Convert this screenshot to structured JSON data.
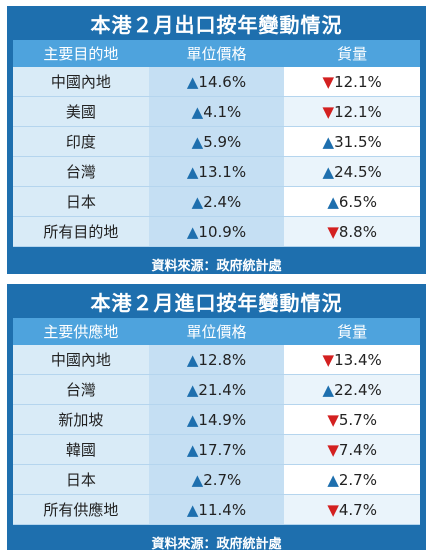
{
  "colors": {
    "panel": "#1e6fae",
    "header": "#4ea3dd",
    "up": "#1e6fae",
    "down": "#d32020"
  },
  "symbols": {
    "up": "▲",
    "down": "▼"
  },
  "export": {
    "title": "本港２月出口按年變動情況",
    "headers": [
      "主要目的地",
      "單位價格",
      "貨量"
    ],
    "rows": [
      {
        "name": "中國內地",
        "price": "14.6%",
        "price_dir": "up",
        "vol": "12.1%",
        "vol_dir": "down"
      },
      {
        "name": "美國",
        "price": "4.1%",
        "price_dir": "up",
        "vol": "12.1%",
        "vol_dir": "down"
      },
      {
        "name": "印度",
        "price": "5.9%",
        "price_dir": "up",
        "vol": "31.5%",
        "vol_dir": "up"
      },
      {
        "name": "台灣",
        "price": "13.1%",
        "price_dir": "up",
        "vol": "24.5%",
        "vol_dir": "up"
      },
      {
        "name": "日本",
        "price": "2.4%",
        "price_dir": "up",
        "vol": "6.5%",
        "vol_dir": "up"
      },
      {
        "name": "所有目的地",
        "price": "10.9%",
        "price_dir": "up",
        "vol": "8.8%",
        "vol_dir": "down"
      }
    ],
    "source": "資料來源：政府統計處"
  },
  "import": {
    "title": "本港２月進口按年變動情況",
    "headers": [
      "主要供應地",
      "單位價格",
      "貨量"
    ],
    "rows": [
      {
        "name": "中國內地",
        "price": "12.8%",
        "price_dir": "up",
        "vol": "13.4%",
        "vol_dir": "down"
      },
      {
        "name": "台灣",
        "price": "21.4%",
        "price_dir": "up",
        "vol": "22.4%",
        "vol_dir": "up"
      },
      {
        "name": "新加坡",
        "price": "14.9%",
        "price_dir": "up",
        "vol": "5.7%",
        "vol_dir": "down"
      },
      {
        "name": "韓國",
        "price": "17.7%",
        "price_dir": "up",
        "vol": "7.4%",
        "vol_dir": "down"
      },
      {
        "name": "日本",
        "price": "2.7%",
        "price_dir": "up",
        "vol": "2.7%",
        "vol_dir": "up"
      },
      {
        "name": "所有供應地",
        "price": "11.4%",
        "price_dir": "up",
        "vol": "4.7%",
        "vol_dir": "down"
      }
    ],
    "source": "資料來源：政府統計處"
  }
}
